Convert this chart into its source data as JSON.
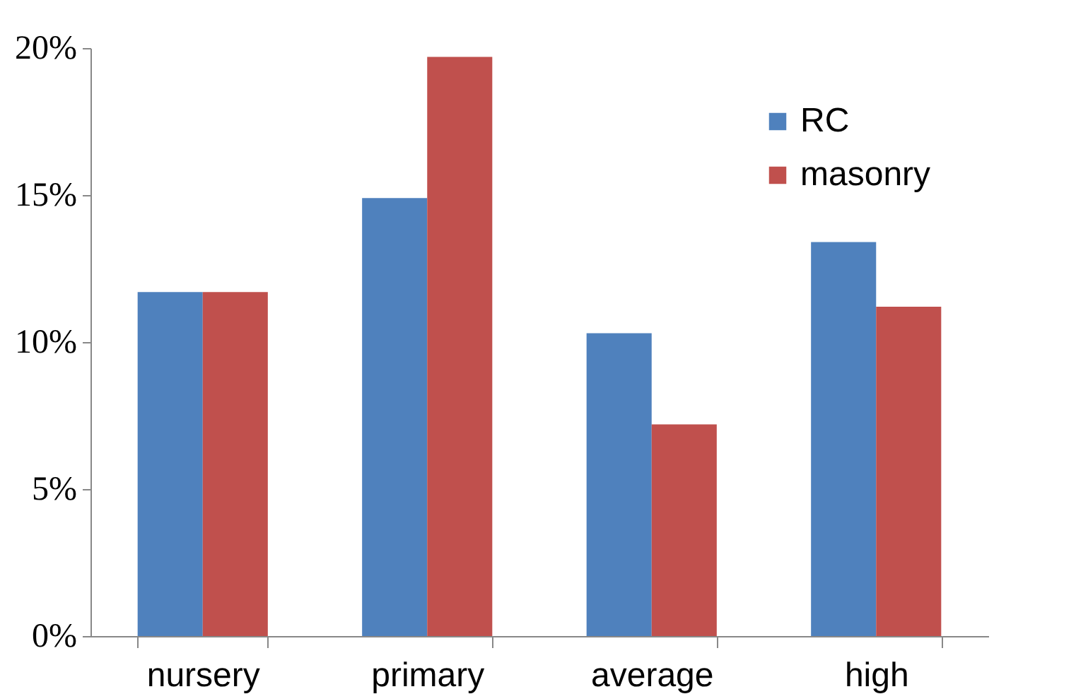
{
  "chart_data": {
    "type": "bar",
    "categories": [
      "nursery",
      "primary",
      "average",
      "high"
    ],
    "series": [
      {
        "name": "RC",
        "color": "#4f81bd",
        "values": [
          11.7,
          14.9,
          10.3,
          13.4
        ]
      },
      {
        "name": "masonry",
        "color": "#c0504d",
        "values": [
          11.7,
          19.7,
          7.2,
          11.2
        ]
      }
    ],
    "ylim": [
      0,
      20
    ],
    "yticks": [
      {
        "value": 0,
        "label": "0%"
      },
      {
        "value": 5,
        "label": "5%"
      },
      {
        "value": 10,
        "label": "10%"
      },
      {
        "value": 15,
        "label": "15%"
      },
      {
        "value": 20,
        "label": "20%"
      }
    ],
    "grid": false,
    "legend": "top right"
  }
}
